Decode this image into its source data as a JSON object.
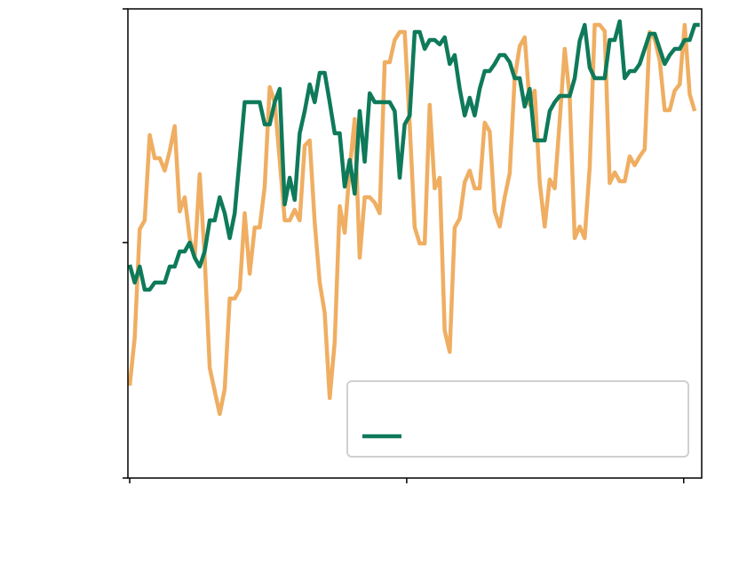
{
  "chart_data": {
    "type": "line",
    "x": [
      0,
      1,
      2,
      3,
      4,
      5,
      6,
      7,
      8,
      9,
      10,
      11,
      12,
      13,
      14,
      15,
      16,
      17,
      18,
      19,
      20,
      21,
      22,
      23,
      24,
      25,
      26,
      27,
      28,
      29,
      30,
      31,
      32,
      33,
      34,
      35,
      36,
      37,
      38,
      39,
      40,
      41,
      42,
      43,
      44,
      45,
      46,
      47,
      48,
      49,
      50,
      51,
      52,
      53,
      54,
      55,
      56,
      57,
      58,
      59,
      60,
      61,
      62,
      63,
      64,
      65,
      66,
      67,
      68,
      69,
      70,
      71,
      72,
      73,
      74,
      75,
      76,
      77,
      78,
      79,
      80,
      81,
      82,
      83,
      84,
      85,
      86,
      87,
      88,
      89,
      90,
      91,
      92,
      93,
      94,
      95,
      96,
      97,
      98,
      99,
      100,
      101,
      102,
      103,
      104,
      105,
      106,
      107,
      108,
      109,
      110,
      111,
      112,
      113,
      114
    ],
    "series": [
      {
        "color": "#0e7a5a",
        "values": [
          240,
          220,
          238,
          212,
          212,
          220,
          220,
          220,
          238,
          238,
          255,
          255,
          265,
          248,
          238,
          255,
          290,
          290,
          316,
          298,
          270,
          298,
          360,
          423,
          423,
          423,
          423,
          398,
          398,
          423,
          438,
          308,
          338,
          313,
          388,
          413,
          443,
          423,
          456,
          456,
          423,
          388,
          388,
          328,
          358,
          320,
          413,
          356,
          433,
          423,
          423,
          423,
          423,
          413,
          338,
          398,
          408,
          502,
          502,
          483,
          493,
          493,
          488,
          496,
          466,
          476,
          438,
          408,
          428,
          408,
          438,
          458,
          458,
          466,
          476,
          476,
          468,
          450,
          450,
          418,
          438,
          380,
          380,
          380,
          413,
          423,
          430,
          430,
          430,
          450,
          492,
          510,
          462,
          450,
          450,
          450,
          493,
          493,
          514,
          450,
          458,
          458,
          466,
          483,
          500,
          500,
          483,
          466,
          476,
          483,
          483,
          493,
          493,
          510,
          510
        ]
      },
      {
        "color": "#efae62",
        "values": [
          104,
          158,
          280,
          290,
          386,
          360,
          360,
          346,
          368,
          396,
          300,
          316,
          270,
          248,
          342,
          248,
          124,
          98,
          72,
          100,
          202,
          202,
          212,
          298,
          230,
          282,
          282,
          328,
          440,
          423,
          358,
          290,
          290,
          302,
          290,
          374,
          380,
          288,
          220,
          186,
          90,
          153,
          306,
          276,
          348,
          404,
          248,
          316,
          316,
          310,
          298,
          468,
          468,
          493,
          502,
          502,
          398,
          282,
          264,
          264,
          420,
          326,
          338,
          166,
          142,
          282,
          292,
          333,
          346,
          326,
          326,
          400,
          390,
          300,
          283,
          316,
          343,
          450,
          486,
          496,
          420,
          436,
          333,
          283,
          336,
          326,
          402,
          483,
          430,
          270,
          283,
          270,
          350,
          510,
          510,
          503,
          332,
          344,
          334,
          334,
          362,
          352,
          362,
          370,
          502,
          494,
          470,
          414,
          414,
          436,
          443,
          510,
          432,
          413,
          null
        ]
      }
    ],
    "xlim": [
      -0.36,
      114.4
    ],
    "xticks": [
      0,
      55.4,
      110.8
    ],
    "ylim": [
      0,
      528
    ],
    "yticks": [
      0,
      265,
      528
    ],
    "legend": "lower right"
  }
}
